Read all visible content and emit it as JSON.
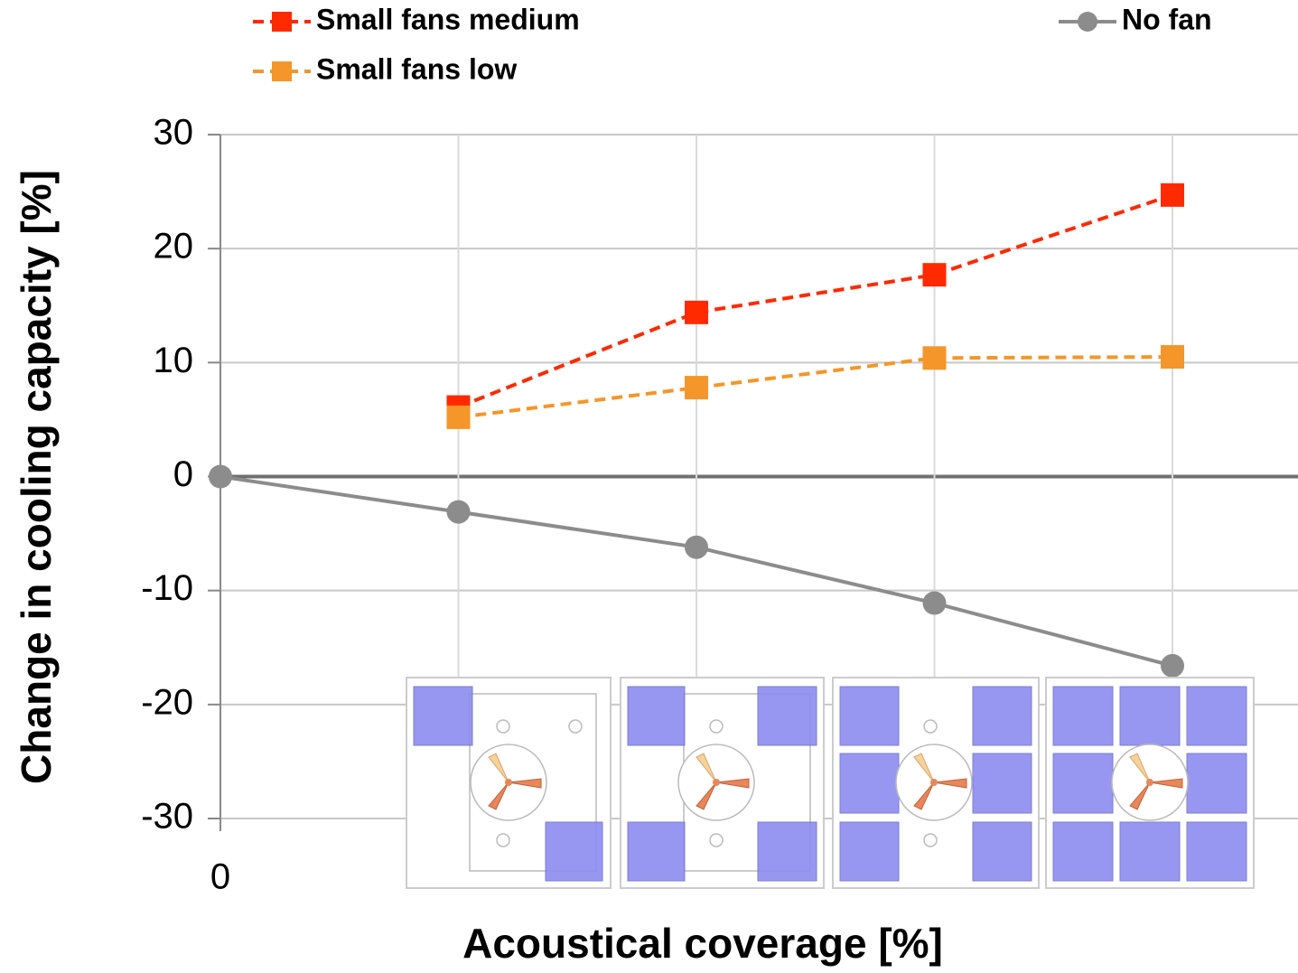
{
  "chart_data": {
    "type": "line",
    "categories": [
      "0",
      null,
      null,
      null,
      null
    ],
    "series": [
      {
        "name": "Small fans medium",
        "color": "#ff2a00",
        "marker": "square",
        "dash": true,
        "values": [
          null,
          6.1,
          14.4,
          17.7,
          24.7
        ]
      },
      {
        "name": "Small fans low",
        "color": "#f4962a",
        "marker": "square",
        "dash": true,
        "values": [
          null,
          5.2,
          7.8,
          10.4,
          10.5
        ]
      },
      {
        "name": "No fan",
        "color": "#8c8c8c",
        "marker": "circle",
        "dash": false,
        "values": [
          0,
          -3.1,
          -6.2,
          -11.1,
          -16.6
        ]
      }
    ],
    "ylim": [
      -30,
      30
    ],
    "yticks": [
      -30,
      -20,
      -10,
      0,
      10,
      20,
      30
    ],
    "grid": true,
    "xlabel": "Acoustical coverage [%]",
    "ylabel": "Change in cooling capacity [%]",
    "legend": "top"
  }
}
